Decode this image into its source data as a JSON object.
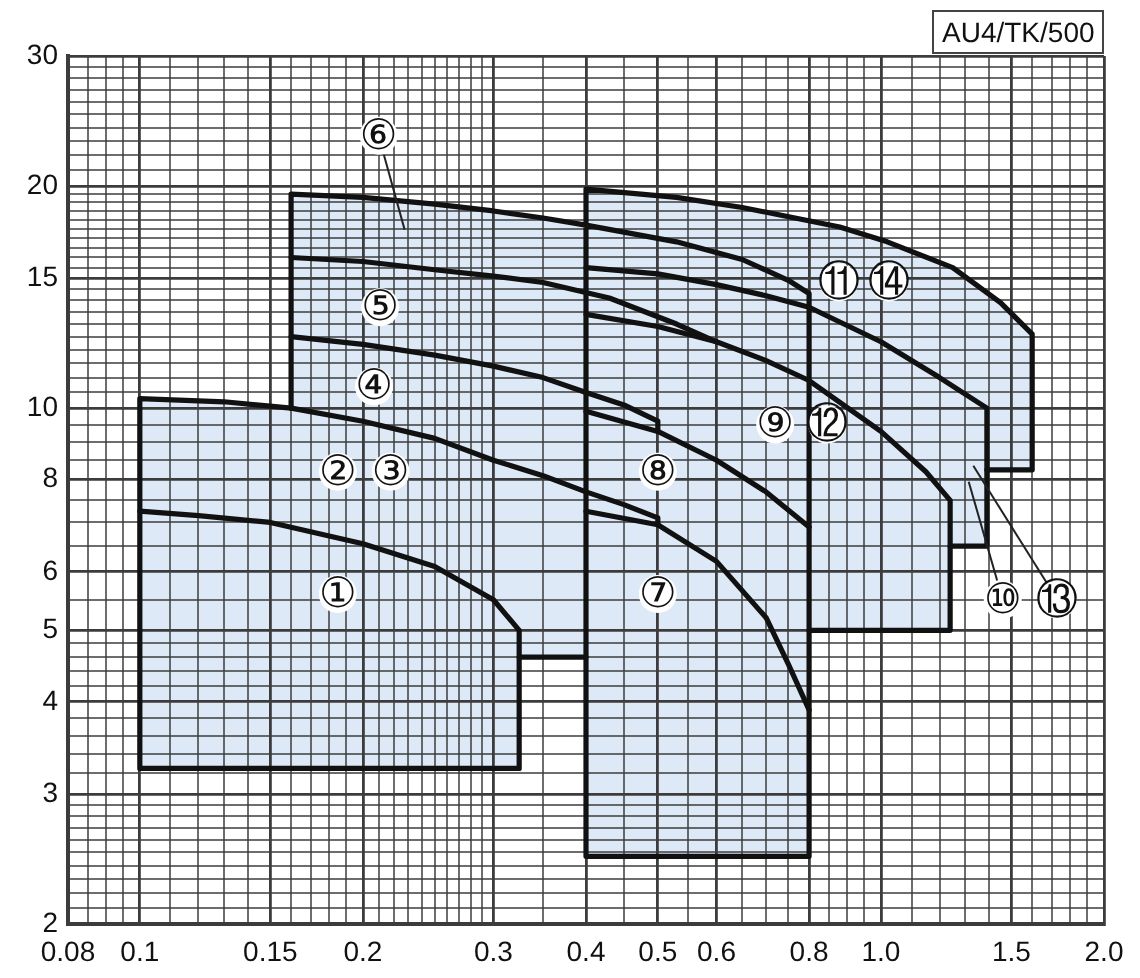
{
  "chart_data": {
    "type": "line",
    "log": "xy",
    "grid": true,
    "xlim": [
      0.08,
      2
    ],
    "ylim": [
      2,
      30
    ],
    "xticks": [
      0.08,
      {
        "value": 0.085,
        "label": null
      },
      {
        "value": 0.09,
        "label": null
      },
      {
        "value": 0.095,
        "label": null
      },
      0.1,
      {
        "value": 0.11,
        "label": null
      },
      {
        "value": 0.12,
        "label": null
      },
      {
        "value": 0.13,
        "label": null
      },
      {
        "value": 0.14,
        "label": null
      },
      0.15,
      {
        "value": 0.16,
        "label": null
      },
      {
        "value": 0.17,
        "label": null
      },
      {
        "value": 0.18,
        "label": null
      },
      {
        "value": 0.19,
        "label": null
      },
      0.2,
      {
        "value": 0.21,
        "label": null
      },
      {
        "value": 0.22,
        "label": null
      },
      {
        "value": 0.23,
        "label": null
      },
      {
        "value": 0.24,
        "label": null
      },
      {
        "value": 0.25,
        "label": null
      },
      {
        "value": 0.26,
        "label": null
      },
      {
        "value": 0.27,
        "label": null
      },
      {
        "value": 0.28,
        "label": null
      },
      {
        "value": 0.29,
        "label": null
      },
      0.3,
      {
        "value": 0.35,
        "label": null
      },
      0.4,
      {
        "value": 0.45,
        "label": null
      },
      0.5,
      {
        "value": 0.55,
        "label": null
      },
      0.6,
      {
        "value": 0.65,
        "label": null
      },
      {
        "value": 0.7,
        "label": null
      },
      {
        "value": 0.75,
        "label": null
      },
      0.8,
      {
        "value": 0.85,
        "label": null
      },
      {
        "value": 0.9,
        "label": null
      },
      {
        "value": 0.95,
        "label": null
      },
      {
        "value": 1,
        "label": "1.0"
      },
      {
        "value": 1.1,
        "label": null
      },
      {
        "value": 1.2,
        "label": null
      },
      {
        "value": 1.3,
        "label": null
      },
      {
        "value": 1.4,
        "label": null
      },
      1.5,
      {
        "value": 1.6,
        "label": null
      },
      {
        "value": 1.7,
        "label": null
      },
      {
        "value": 1.8,
        "label": null
      },
      {
        "value": 1.9,
        "label": null
      },
      {
        "value": 2,
        "label": "2.0"
      }
    ],
    "yticks": [
      2,
      {
        "value": 2.1,
        "label": null
      },
      {
        "value": 2.2,
        "label": null
      },
      {
        "value": 2.3,
        "label": null
      },
      {
        "value": 2.4,
        "label": null
      },
      {
        "value": 2.5,
        "label": null
      },
      {
        "value": 2.6,
        "label": null
      },
      {
        "value": 2.7,
        "label": null
      },
      {
        "value": 2.8,
        "label": null
      },
      {
        "value": 2.9,
        "label": null
      },
      3,
      {
        "value": 3.2,
        "label": null
      },
      {
        "value": 3.4,
        "label": null
      },
      {
        "value": 3.6,
        "label": null
      },
      {
        "value": 3.8,
        "label": null
      },
      4,
      {
        "value": 4.2,
        "label": null
      },
      {
        "value": 4.4,
        "label": null
      },
      {
        "value": 4.6,
        "label": null
      },
      {
        "value": 4.8,
        "label": null
      },
      5,
      {
        "value": 5.5,
        "label": null
      },
      6,
      {
        "value": 6.5,
        "label": null
      },
      {
        "value": 7,
        "label": null
      },
      {
        "value": 7.5,
        "label": null
      },
      8,
      {
        "value": 8.5,
        "label": null
      },
      {
        "value": 9,
        "label": null
      },
      {
        "value": 9.5,
        "label": null
      },
      10,
      {
        "value": 10.5,
        "label": null
      },
      {
        "value": 11,
        "label": null
      },
      {
        "value": 11.5,
        "label": null
      },
      {
        "value": 12,
        "label": null
      },
      {
        "value": 12.5,
        "label": null
      },
      {
        "value": 13,
        "label": null
      },
      {
        "value": 13.5,
        "label": null
      },
      {
        "value": 14,
        "label": null
      },
      {
        "value": 14.5,
        "label": null
      },
      15,
      {
        "value": 15.5,
        "label": null
      },
      {
        "value": 16,
        "label": null
      },
      {
        "value": 16.5,
        "label": null
      },
      {
        "value": 17,
        "label": null
      },
      {
        "value": 17.5,
        "label": null
      },
      {
        "value": 18,
        "label": null
      },
      {
        "value": 18.5,
        "label": null
      },
      {
        "value": 19,
        "label": null
      },
      {
        "value": 19.5,
        "label": null
      },
      20,
      {
        "value": 21,
        "label": null
      },
      {
        "value": 22,
        "label": null
      },
      {
        "value": 23,
        "label": null
      },
      {
        "value": 24,
        "label": null
      },
      {
        "value": 25,
        "label": null
      },
      {
        "value": 26,
        "label": null
      },
      {
        "value": 27,
        "label": null
      },
      {
        "value": 28,
        "label": null
      },
      {
        "value": 29,
        "label": null
      },
      30
    ],
    "series": [
      {
        "type": "area",
        "color": "#dde9f6",
        "x": [
          0.1,
          0.1,
          0.13,
          0.16,
          0.16,
          0.2,
          0.25,
          0.3,
          0.35,
          0.4,
          0.4,
          0.53,
          0.65,
          0.88,
          1.02,
          1.25,
          1.45,
          1.6,
          1.6,
          1.39,
          1.39,
          1.24,
          1.24,
          0.8,
          0.8,
          0.4,
          0.4,
          0.325,
          0.325,
          0.1
        ],
        "values": [
          3.25,
          10.3,
          10.2,
          10.0,
          19.5,
          19.3,
          18.9,
          18.5,
          18.1,
          17.7,
          19.8,
          19.3,
          18.7,
          17.6,
          16.8,
          15.5,
          13.9,
          12.6,
          8.25,
          8.25,
          6.5,
          6.5,
          5.0,
          5.0,
          2.47,
          2.47,
          4.6,
          4.6,
          3.25,
          3.25
        ]
      },
      {
        "color": "#111111",
        "x": [
          0.4,
          0.325,
          0.325,
          0.1,
          0.1,
          0.13,
          0.16,
          0.2,
          0.25,
          0.3,
          0.35,
          0.4,
          0.45,
          0.5,
          0.5
        ],
        "values": [
          4.6,
          4.6,
          3.25,
          3.25,
          10.3,
          10.2,
          10.0,
          9.6,
          9.1,
          8.5,
          8.1,
          7.7,
          7.4,
          7.1,
          6.95
        ]
      },
      {
        "color": "#111111",
        "x": [
          0.1,
          0.12,
          0.15,
          0.2,
          0.25,
          0.3,
          0.325,
          0.325
        ],
        "values": [
          7.25,
          7.15,
          7.0,
          6.55,
          6.1,
          5.5,
          5.0,
          4.6
        ]
      },
      {
        "color": "#111111",
        "x": [
          0.16,
          0.16,
          0.2,
          0.25,
          0.3,
          0.35,
          0.4,
          0.53,
          0.65,
          0.75,
          0.8,
          0.8,
          0.4,
          0.4,
          0.53,
          0.65,
          0.88,
          1.02,
          1.25,
          1.45,
          1.6,
          1.6,
          1.39
        ],
        "values": [
          10.0,
          19.5,
          19.3,
          18.9,
          18.5,
          18.1,
          17.7,
          16.8,
          15.9,
          14.9,
          14.3,
          2.47,
          2.47,
          19.8,
          19.3,
          18.7,
          17.6,
          16.8,
          15.5,
          13.9,
          12.6,
          8.25,
          8.25
        ]
      },
      {
        "color": "#111111",
        "x": [
          0.16,
          0.2,
          0.25,
          0.3,
          0.35,
          0.4,
          0.45,
          0.5,
          0.5
        ],
        "values": [
          12.5,
          12.2,
          11.8,
          11.4,
          11.0,
          10.5,
          10.1,
          9.6,
          9.3
        ]
      },
      {
        "color": "#111111",
        "x": [
          0.16,
          0.2,
          0.25,
          0.3,
          0.35,
          0.43,
          0.53,
          0.6
        ],
        "values": [
          16.0,
          15.8,
          15.4,
          15.1,
          14.8,
          14.1,
          13.0,
          12.3
        ]
      },
      {
        "color": "#111111",
        "x": [
          0.4,
          0.5,
          0.6,
          0.7,
          0.75,
          0.8
        ],
        "values": [
          7.25,
          6.95,
          6.2,
          5.2,
          4.5,
          3.9
        ]
      },
      {
        "color": "#111111",
        "x": [
          0.4,
          0.5,
          0.6,
          0.7,
          0.8
        ],
        "values": [
          9.9,
          9.3,
          8.5,
          7.7,
          6.9
        ]
      },
      {
        "color": "#111111",
        "x": [
          0.4,
          0.5,
          0.6,
          0.7,
          0.8,
          1.0,
          1.15,
          1.24,
          1.24,
          0.8
        ],
        "values": [
          13.4,
          12.9,
          12.3,
          11.6,
          10.9,
          9.3,
          8.2,
          7.5,
          5.0,
          5.0
        ]
      },
      {
        "color": "#111111",
        "x": [
          0.4,
          0.5,
          0.6,
          0.7,
          0.8,
          1.0,
          1.2,
          1.39,
          1.39,
          1.24
        ],
        "values": [
          15.5,
          15.2,
          14.7,
          14.2,
          13.7,
          12.3,
          11.0,
          10.0,
          6.5,
          6.5
        ]
      }
    ],
    "annotations": [
      {
        "text": "①",
        "x": 0.185,
        "y": 5.6
      },
      {
        "text": "②",
        "x": 0.185,
        "y": 8.2
      },
      {
        "text": "③",
        "x": 0.218,
        "y": 8.2
      },
      {
        "text": "④",
        "x": 0.207,
        "y": 10.7
      },
      {
        "text": "⑤",
        "x": 0.211,
        "y": 13.7
      },
      {
        "text": "⑥",
        "x": 0.21,
        "y": 23.4
      },
      {
        "text": "⑦",
        "x": 0.5,
        "y": 5.6
      },
      {
        "text": "⑧",
        "x": 0.5,
        "y": 8.2
      },
      {
        "text": "⑨",
        "x": 0.72,
        "y": 9.5
      },
      {
        "text": "⑫",
        "x": 0.846,
        "y": 9.5
      },
      {
        "text": "⑩",
        "x": 1.46,
        "y": 5.5
      },
      {
        "text": "⑪",
        "x": 0.877,
        "y": 14.8
      },
      {
        "text": "⑭",
        "x": 1.025,
        "y": 14.8
      },
      {
        "text": "⑬",
        "x": 1.73,
        "y": 5.5
      },
      "AU4/TK/500"
    ]
  }
}
